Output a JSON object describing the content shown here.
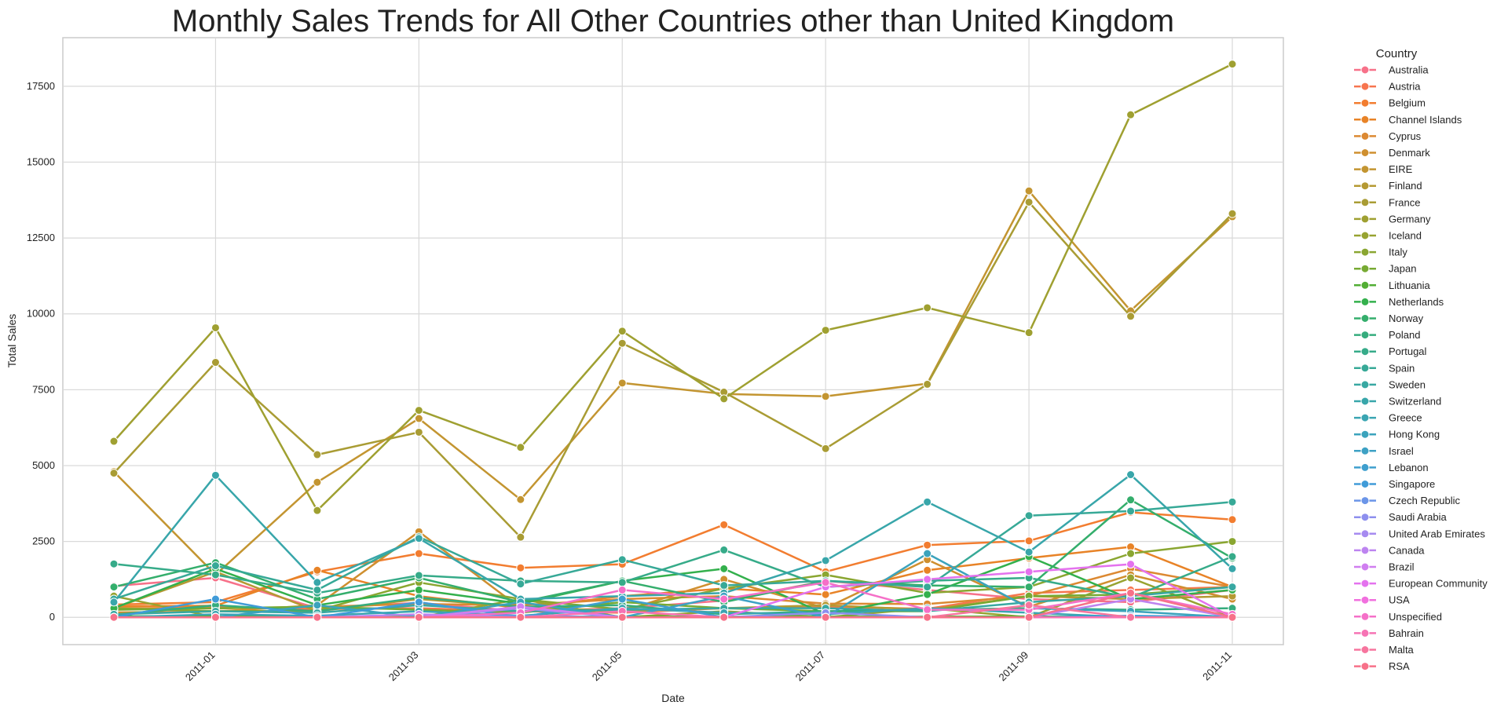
{
  "chart_data": {
    "type": "line",
    "title": "Monthly Sales Trends for All Other Countries other than United Kingdom",
    "xlabel": "Date",
    "ylabel": "Total Sales",
    "x": [
      "2010-12",
      "2011-01",
      "2011-02",
      "2011-03",
      "2011-04",
      "2011-05",
      "2011-06",
      "2011-07",
      "2011-08",
      "2011-09",
      "2011-10",
      "2011-11"
    ],
    "x_ticks": [
      "2011-01",
      "2011-03",
      "2011-05",
      "2011-07",
      "2011-09",
      "2011-11"
    ],
    "y_ticks": [
      0,
      2500,
      5000,
      7500,
      10000,
      12500,
      15000,
      17500
    ],
    "ylim": [
      -900,
      19100
    ],
    "grid": true,
    "legend": {
      "title": "Country",
      "placement": "outside-right"
    },
    "series": [
      {
        "name": "Australia",
        "color": "#f77189",
        "values": [
          1030,
          1300,
          300,
          480,
          200,
          300,
          550,
          1200,
          900,
          600,
          500,
          900
        ]
      },
      {
        "name": "Austria",
        "color": "#f7754f",
        "values": [
          270,
          350,
          270,
          300,
          200,
          150,
          300,
          350,
          280,
          800,
          900,
          1000
        ]
      },
      {
        "name": "Belgium",
        "color": "#f27d30",
        "values": [
          420,
          500,
          1500,
          2100,
          1630,
          1750,
          3050,
          1500,
          2380,
          2520,
          3460,
          3220
        ]
      },
      {
        "name": "Channel Islands",
        "color": "#e88327",
        "values": [
          360,
          380,
          1550,
          700,
          300,
          700,
          950,
          750,
          1550,
          1950,
          2320,
          1000
        ]
      },
      {
        "name": "Cyprus",
        "color": "#dc8932",
        "values": [
          300,
          290,
          350,
          440,
          400,
          600,
          700,
          450,
          440,
          700,
          1600,
          1000
        ]
      },
      {
        "name": "Denmark",
        "color": "#cf8f2f",
        "values": [
          160,
          190,
          400,
          2820,
          300,
          200,
          1250,
          300,
          1900,
          350,
          1400,
          600
        ]
      },
      {
        "name": "EIRE",
        "color": "#c39531",
        "values": [
          4800,
          1400,
          4450,
          6550,
          3880,
          7720,
          7360,
          7280,
          7700,
          14050,
          10100,
          13200
        ]
      },
      {
        "name": "Finland",
        "color": "#b59932",
        "values": [
          300,
          1500,
          200,
          600,
          350,
          200,
          300,
          400,
          250,
          700,
          600,
          700
        ]
      },
      {
        "name": "France",
        "color": "#a99c34",
        "values": [
          4750,
          8400,
          5360,
          6100,
          2640,
          9030,
          7420,
          5560,
          7680,
          13680,
          9920,
          13300
        ]
      },
      {
        "name": "Germany",
        "color": "#9fa031",
        "values": [
          5800,
          9540,
          3520,
          6820,
          5600,
          9430,
          7200,
          9460,
          10200,
          9380,
          16560,
          18230
        ]
      },
      {
        "name": "Iceland",
        "color": "#97a331",
        "values": [
          700,
          0,
          0,
          0,
          600,
          0,
          200,
          0,
          300,
          0,
          1300,
          0
        ]
      },
      {
        "name": "Italy",
        "color": "#8aa631",
        "values": [
          300,
          200,
          220,
          1150,
          600,
          260,
          950,
          1400,
          800,
          1000,
          2100,
          2500
        ]
      },
      {
        "name": "Japan",
        "color": "#77aa33",
        "values": [
          250,
          300,
          350,
          250,
          150,
          500,
          300,
          200,
          200,
          700,
          750,
          1000
        ]
      },
      {
        "name": "Lithuania",
        "color": "#52ae34",
        "values": [
          40,
          30,
          20,
          30,
          20,
          20,
          20,
          20,
          20,
          30,
          20,
          30
        ]
      },
      {
        "name": "Netherlands",
        "color": "#33b04c",
        "values": [
          300,
          1600,
          400,
          900,
          450,
          1200,
          1600,
          100,
          750,
          2000,
          600,
          900
        ]
      },
      {
        "name": "Norway",
        "color": "#34ae6c",
        "values": [
          1000,
          1800,
          600,
          1300,
          500,
          1200,
          500,
          1200,
          1050,
          1000,
          3870,
          1950
        ]
      },
      {
        "name": "Poland",
        "color": "#35ac7d",
        "values": [
          80,
          400,
          200,
          650,
          350,
          400,
          100,
          200,
          250,
          300,
          250,
          300
        ]
      },
      {
        "name": "Portugal",
        "color": "#36ab89",
        "values": [
          1760,
          1400,
          800,
          1380,
          1200,
          1150,
          2220,
          1000,
          1200,
          1300,
          650,
          2000
        ]
      },
      {
        "name": "Spain",
        "color": "#37a997",
        "values": [
          600,
          1700,
          900,
          2650,
          1100,
          1900,
          1050,
          1200,
          1000,
          3350,
          3500,
          3800
        ]
      },
      {
        "name": "Sweden",
        "color": "#38a8a2",
        "values": [
          100,
          200,
          150,
          400,
          200,
          250,
          300,
          300,
          200,
          500,
          700,
          1000
        ]
      },
      {
        "name": "Switzerland",
        "color": "#38a6aa",
        "values": [
          500,
          4680,
          1150,
          2600,
          600,
          700,
          800,
          1870,
          3800,
          2150,
          4700,
          1600
        ]
      },
      {
        "name": "Greece",
        "color": "#3aa5b2",
        "values": [
          0,
          100,
          50,
          200,
          50,
          300,
          150,
          100,
          300,
          150,
          0,
          0
        ]
      },
      {
        "name": "Hong Kong",
        "color": "#3ba3bc",
        "values": [
          0,
          0,
          400,
          0,
          500,
          0,
          0,
          0,
          2100,
          300,
          200,
          0
        ]
      },
      {
        "name": "Israel",
        "color": "#3da1c4",
        "values": [
          0,
          0,
          0,
          0,
          0,
          0,
          700,
          0,
          0,
          0,
          0,
          0
        ]
      },
      {
        "name": "Lebanon",
        "color": "#3f9fce",
        "values": [
          0,
          0,
          0,
          0,
          0,
          600,
          0,
          0,
          0,
          0,
          0,
          0
        ]
      },
      {
        "name": "Singapore",
        "color": "#409bd8",
        "values": [
          0,
          600,
          0,
          500,
          0,
          0,
          0,
          0,
          0,
          0,
          50,
          0
        ]
      },
      {
        "name": "Czech Republic",
        "color": "#6b95e8",
        "values": [
          0,
          0,
          0,
          0,
          50,
          0,
          0,
          0,
          0,
          0,
          0,
          0
        ]
      },
      {
        "name": "Saudi Arabia",
        "color": "#8d8fee",
        "values": [
          0,
          0,
          0,
          0,
          0,
          0,
          0,
          150,
          0,
          0,
          0,
          0
        ]
      },
      {
        "name": "United Arab Emirates",
        "color": "#a68af0",
        "values": [
          0,
          0,
          0,
          0,
          300,
          0,
          0,
          0,
          0,
          0,
          0,
          0
        ]
      },
      {
        "name": "Canada",
        "color": "#bd84f0",
        "values": [
          0,
          0,
          0,
          100,
          0,
          0,
          0,
          0,
          0,
          0,
          600,
          0
        ]
      },
      {
        "name": "Brazil",
        "color": "#d07ef0",
        "values": [
          0,
          0,
          0,
          0,
          350,
          0,
          0,
          0,
          0,
          0,
          0,
          0
        ]
      },
      {
        "name": "European Community",
        "color": "#e472ee",
        "values": [
          0,
          0,
          0,
          0,
          0,
          0,
          0,
          1000,
          1250,
          1500,
          1750,
          0
        ]
      },
      {
        "name": "USA",
        "color": "#f16fde",
        "values": [
          0,
          0,
          0,
          0,
          0,
          0,
          0,
          0,
          0,
          0,
          0,
          0
        ]
      },
      {
        "name": "Unspecified",
        "color": "#f570c8",
        "values": [
          0,
          0,
          0,
          0,
          150,
          900,
          600,
          1150,
          250,
          250,
          800,
          100
        ]
      },
      {
        "name": "Bahrain",
        "color": "#f673b4",
        "values": [
          0,
          0,
          0,
          0,
          0,
          200,
          0,
          0,
          0,
          0,
          0,
          0
        ]
      },
      {
        "name": "Malta",
        "color": "#f7759e",
        "values": [
          0,
          0,
          0,
          0,
          0,
          0,
          0,
          0,
          0,
          400,
          0,
          0
        ]
      },
      {
        "name": "RSA",
        "color": "#f77189",
        "values": [
          0,
          0,
          0,
          0,
          0,
          0,
          0,
          0,
          0,
          0,
          800,
          0
        ]
      }
    ]
  }
}
